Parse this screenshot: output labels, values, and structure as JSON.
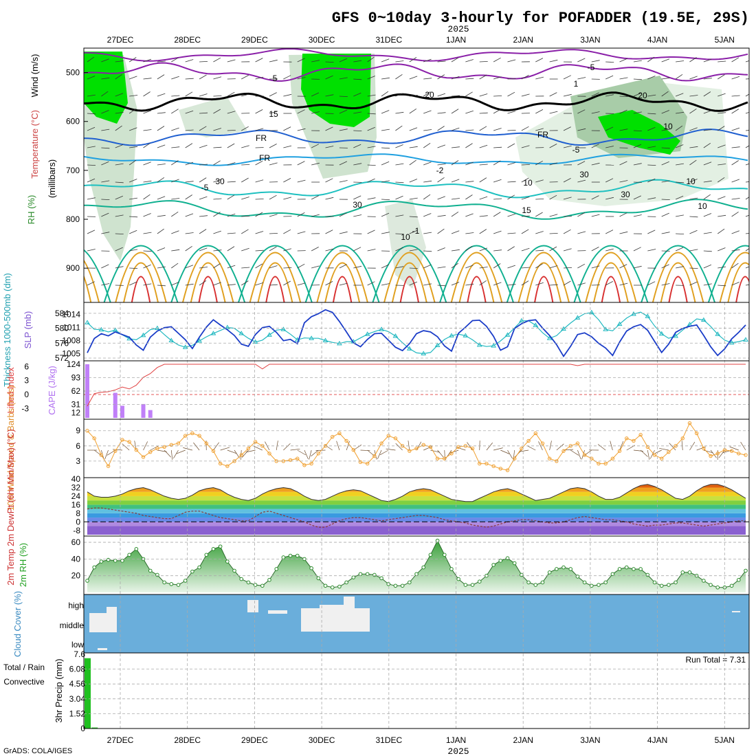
{
  "title": "GFS 0~10day 3-hourly for POFADDER (19.5E, 29S)",
  "year_label": "2025",
  "credit": "GrADS: COLA/IGES",
  "date_labels": [
    "27DEC",
    "28DEC",
    "29DEC",
    "30DEC",
    "31DEC",
    "1JAN",
    "2JAN",
    "3JAN",
    "4JAN",
    "5JAN"
  ],
  "colors": {
    "rh_green": "#00e000",
    "temp_purple": "#8a1fa8",
    "temp_blue": "#1f5fd0",
    "temp_lightblue": "#1fa0e0",
    "temp_cyan": "#1ec0c0",
    "temp_teal": "#10b090",
    "temp_orange": "#e0a020",
    "temp_red": "#d83030",
    "slp": "#1a3cc8",
    "thickness": "#20b8c0",
    "cape": "#c080f8",
    "lifted": "#e04040",
    "wind": "#f0a030",
    "rh2m": "#20a020",
    "cloud": "#6aaedb",
    "precip": "#20c020"
  },
  "upper_panel": {
    "y_axis_label_units": "(millibars)",
    "legend_wind": "Wind (m/s)",
    "legend_temp": "Temperature (°C)",
    "legend_rh": "RH (%)",
    "y_ticks": [
      "500",
      "600",
      "700",
      "800",
      "900"
    ],
    "contour_labels": [
      "5",
      "-5",
      "FR",
      "FR",
      "FR",
      "-5",
      "-5",
      "10",
      "10",
      "15",
      "15",
      "20",
      "20",
      "30",
      "30",
      "30",
      "30",
      "10",
      "10",
      "-1",
      "1",
      "10",
      "-2"
    ]
  },
  "chart_data": [
    {
      "type": "line",
      "title": "",
      "ylabel_left": "Thickness 1000-500mb (dm)",
      "ylabel_right": "SLP (mb)",
      "y_left_ticks": [
        "572",
        "576",
        "580",
        "584"
      ],
      "y_right_ticks": [
        "1005",
        "1008",
        "1011",
        "1014"
      ],
      "series": [
        {
          "name": "SLP (mb)",
          "axis": "right",
          "values": [
            1005.2,
            1008.5,
            1009.6,
            1009.1,
            1010.0,
            1009.4,
            1008.8,
            1007.0,
            1005.8,
            1008.8,
            1010.2,
            1011.0,
            1011.2,
            1009.7,
            1008.2,
            1006.2,
            1008.8,
            1011.1,
            1012.8,
            1011.6,
            1010.5,
            1009.2,
            1007.2,
            1006.7,
            1009.4,
            1011.0,
            1011.3,
            1009.9,
            1008.0,
            1008.3,
            1007.3,
            1012.1,
            1013.5,
            1014.2,
            1015.1,
            1014.5,
            1012.4,
            1010.0,
            1007.5,
            1006.6,
            1008.3,
            1009.6,
            1009.7,
            1008.1,
            1006.5,
            1005.7,
            1007.3,
            1009.6,
            1010.3,
            1010.0,
            1008.9,
            1006.8,
            1005.6,
            1009.7,
            1011.1,
            1012.6,
            1012.7,
            1011.3,
            1009.0,
            1005.8,
            1006.6,
            1010.8,
            1011.9,
            1012.6,
            1012.8,
            1010.9,
            1009.2,
            1007.1,
            1004.4,
            1006.7,
            1009.4,
            1009.8,
            1008.9,
            1007.4,
            1006.3,
            1004.6,
            1007.7,
            1010.2,
            1011.2,
            1011.7,
            1010.4,
            1007.8,
            1005.3,
            1007.2,
            1009.9,
            1010.8,
            1011.3,
            1011.6,
            1009.2,
            1006.6,
            1004.6,
            1006.1,
            1008.4,
            1009.9,
            1011.6
          ]
        },
        {
          "name": "Thickness 1000-500mb (dm)",
          "axis": "left",
          "values": [
            581.5,
            579.7,
            579.6,
            579.0,
            579.5,
            578.2,
            577.2,
            576.9,
            578.1,
            579.6,
            580.0,
            578.3,
            576.7,
            575.5,
            574.9,
            575.4,
            576.6,
            577.7,
            578.6,
            579.4,
            580.2,
            580.0,
            578.6,
            577.3,
            576.3,
            576.8,
            578.2,
            579.5,
            579.7,
            578.4,
            576.9,
            577.4,
            577.3,
            577.3,
            576.7,
            576.2,
            575.9,
            576.4,
            576.4,
            577.4,
            578.4,
            579.1,
            579.7,
            579.1,
            577.9,
            576.1,
            574.5,
            573.4,
            573.2,
            573.5,
            575.4,
            577.0,
            578.0,
            578.4,
            578.0,
            576.9,
            575.5,
            575.1,
            575.3,
            576.6,
            578.2,
            580.1,
            582.0,
            582.0,
            580.8,
            578.8,
            577.3,
            578.0,
            579.8,
            581.4,
            582.8,
            583.9,
            584.2,
            582.3,
            579.7,
            579.3,
            581.1,
            582.7,
            583.8,
            584.3,
            583.2,
            580.6,
            578.5,
            577.3,
            577.9,
            579.5,
            581.0,
            582.5,
            582.2,
            580.5,
            578.4,
            576.8,
            576.1,
            576.4,
            576.9
          ]
        }
      ]
    },
    {
      "type": "bar",
      "title": "",
      "ylabel_left": "Lifted Index",
      "ylabel_right": "CAPE (J/kg)",
      "y_left_ticks": [
        "-3",
        "0",
        "3",
        "6"
      ],
      "y_right_ticks": [
        "12",
        "31",
        "62",
        "93",
        "124"
      ],
      "series": [
        {
          "name": "CAPE (J/kg)",
          "type": "bar",
          "values": [
            124,
            0,
            0,
            0,
            58,
            28,
            0,
            0,
            32,
            18,
            0,
            0,
            0,
            0,
            0,
            0,
            0,
            0,
            0,
            0,
            0,
            0,
            0,
            0,
            0,
            0,
            0,
            0,
            0,
            0,
            0,
            0,
            0,
            0,
            0,
            0,
            0,
            0,
            0,
            0,
            0,
            0,
            0,
            0,
            0,
            0,
            0,
            0,
            0,
            0,
            0,
            0,
            0,
            0,
            0,
            0,
            0,
            0,
            0,
            0,
            0,
            0,
            0,
            0,
            0,
            0,
            0,
            0,
            0,
            0,
            0,
            0,
            0,
            0,
            0,
            0,
            0,
            0,
            0,
            0,
            0,
            0,
            0,
            0,
            0,
            0,
            0,
            0,
            0,
            0,
            0,
            0,
            0,
            0,
            0
          ]
        },
        {
          "name": "Lifted Index",
          "type": "line",
          "values": [
            -2.5,
            0.2,
            0.5,
            0.6,
            1.0,
            1.6,
            1.2,
            2.0,
            3.7,
            4.5,
            5.8,
            6.5,
            6.5,
            6.5,
            6.5,
            6.5,
            6.5,
            6.5,
            6.5,
            6.5,
            6.5,
            6.5,
            6.5,
            6.5,
            6.5,
            5.5,
            6.5,
            6.5,
            6.5,
            6.5,
            6.5,
            6.5,
            6.5,
            6.5,
            6.5,
            6.5,
            6.5,
            6.5,
            6.5,
            6.5,
            6.5,
            6.5,
            6.5,
            6.5,
            6.5,
            6.5,
            6.5,
            6.5,
            6.5,
            6.5,
            6.5,
            6.5,
            6.5,
            6.5,
            6.5,
            6.5,
            6.5,
            6.5,
            6.5,
            6.5,
            6.5,
            6.5,
            6.5,
            6.5,
            6.5,
            6.5,
            6.5,
            6.5,
            6.5,
            6.5,
            6.2,
            6.5,
            6.5,
            6.5,
            6.5,
            6.5,
            6.5,
            6.5,
            6.5,
            6.5,
            6.5,
            6.5,
            6.5,
            6.5,
            6.5,
            6.5,
            6.5,
            6.5,
            6.5,
            6.5,
            6.5,
            6.5,
            6.5,
            6.5,
            6.5
          ]
        }
      ]
    },
    {
      "type": "line",
      "title": "",
      "ylabel": "10m Wind Speed & Barbs (m/s)",
      "y_ticks": [
        "3",
        "6",
        "9"
      ],
      "series": [
        {
          "name": "10m Wind Speed (m/s)",
          "values": [
            9.0,
            7.5,
            4.2,
            2.0,
            5.0,
            7.2,
            6.8,
            5.2,
            3.8,
            4.8,
            5.5,
            5.8,
            6.2,
            6.5,
            8.0,
            8.5,
            8.0,
            6.5,
            5.0,
            2.5,
            2.0,
            3.0,
            4.2,
            5.5,
            6.8,
            6.0,
            4.5,
            3.0,
            3.0,
            3.2,
            3.5,
            2.2,
            2.5,
            4.5,
            6.0,
            7.8,
            8.5,
            7.0,
            5.2,
            2.8,
            2.5,
            4.0,
            6.5,
            8.0,
            7.5,
            6.0,
            5.0,
            5.5,
            6.2,
            5.8,
            3.5,
            3.5,
            4.5,
            5.8,
            6.0,
            5.5,
            2.5,
            2.5,
            2.0,
            1.5,
            1.2,
            3.5,
            5.5,
            7.0,
            8.5,
            6.5,
            3.5,
            3.0,
            5.0,
            6.0,
            6.5,
            4.2,
            3.5,
            2.5,
            2.5,
            3.5,
            5.0,
            7.5,
            7.0,
            8.2,
            5.8,
            4.2,
            3.5,
            4.8,
            6.0,
            7.5,
            10.5,
            8.5,
            5.5,
            4.0,
            4.5,
            5.2,
            5.0,
            4.5,
            4.2
          ]
        }
      ]
    },
    {
      "type": "area",
      "title": "",
      "ylabel": "2m Temp 2m DewPt (6hr Min/Max) (°C)",
      "y_ticks": [
        "-8",
        "0",
        "8",
        "16",
        "24",
        "32",
        "40"
      ],
      "series": [
        {
          "name": "2m Temp (°C)",
          "values": [
            28,
            24,
            23,
            23,
            24,
            26,
            29,
            31,
            32,
            30,
            27,
            24,
            22,
            21,
            22,
            25,
            29,
            31,
            32,
            30,
            26,
            23,
            21,
            20,
            22,
            26,
            29,
            31,
            32,
            31,
            28,
            24,
            21,
            20,
            21,
            24,
            27,
            29,
            30,
            29,
            26,
            23,
            20,
            19,
            21,
            24,
            28,
            30,
            31,
            30,
            27,
            24,
            21,
            20,
            19,
            19,
            22,
            25,
            28,
            30,
            31,
            29,
            26,
            23,
            20,
            21,
            22,
            25,
            28,
            31,
            32,
            31,
            28,
            24,
            21,
            21,
            23,
            27,
            31,
            34,
            35,
            33,
            30,
            26,
            22,
            21,
            24,
            29,
            33,
            35,
            35,
            33,
            30,
            26,
            22
          ]
        },
        {
          "name": "2m DewPt (°C)",
          "values": [
            12,
            13,
            13,
            12,
            11,
            10,
            9,
            8,
            6,
            5,
            4,
            3,
            3,
            6,
            9,
            10,
            10,
            8,
            6,
            4,
            3,
            2,
            1,
            1,
            5,
            9,
            10,
            8,
            6,
            4,
            2,
            0,
            -3,
            -5,
            -5,
            -2,
            1,
            3,
            4,
            4,
            3,
            2,
            1,
            2,
            3,
            4,
            5,
            6,
            6,
            5,
            4,
            2,
            1,
            0,
            -1,
            -3,
            -4,
            -5,
            -4,
            -2,
            0,
            1,
            2,
            2,
            1,
            0,
            -1,
            -1,
            0,
            2,
            4,
            5,
            4,
            3,
            2,
            2,
            1,
            0,
            -2,
            -3,
            -4,
            -3,
            -3,
            -2,
            -1,
            -1,
            -2,
            -3,
            -4,
            -3,
            -2,
            -1,
            0,
            1,
            1
          ]
        }
      ]
    },
    {
      "type": "area",
      "title": "",
      "ylabel": "2m RH (%)",
      "y_ticks": [
        "20",
        "40",
        "60"
      ],
      "series": [
        {
          "name": "2m RH (%)",
          "values": [
            14,
            30,
            37,
            39,
            38,
            38,
            45,
            52,
            40,
            26,
            21,
            12,
            10,
            9,
            14,
            25,
            30,
            45,
            52,
            55,
            37,
            26,
            16,
            12,
            9,
            8,
            15,
            28,
            42,
            44,
            44,
            40,
            29,
            17,
            8,
            6,
            7,
            12,
            18,
            22,
            22,
            21,
            17,
            10,
            8,
            8,
            12,
            22,
            30,
            45,
            62,
            45,
            28,
            16,
            9,
            9,
            13,
            20,
            33,
            38,
            41,
            35,
            21,
            12,
            9,
            12,
            24,
            28,
            30,
            28,
            19,
            12,
            8,
            9,
            12,
            22,
            28,
            30,
            28,
            28,
            21,
            12,
            8,
            9,
            12,
            24,
            24,
            20,
            14,
            9,
            6,
            6,
            8,
            15,
            26,
            30,
            32,
            24
          ]
        }
      ]
    },
    {
      "type": "heatmap",
      "title": "",
      "ylabel": "Cloud Cover (%)",
      "y_ticks": [
        "high",
        "middle",
        "low"
      ]
    },
    {
      "type": "bar",
      "title": "",
      "ylabel": "3hr Precip (mm)",
      "legend_left_1": "Total / Rain",
      "legend_left_2": "Convective",
      "annotation": "Run Total = 7.31",
      "y_ticks": [
        "0",
        "1.52",
        "3.04",
        "4.56",
        "6.08",
        "7.6"
      ],
      "ylim": [
        0,
        7.6
      ],
      "series": [
        {
          "name": "Total / Rain",
          "values": [
            7.2,
            0.1,
            0,
            0,
            0,
            0,
            0,
            0,
            0,
            0,
            0,
            0,
            0,
            0,
            0,
            0,
            0,
            0,
            0,
            0,
            0,
            0,
            0,
            0,
            0,
            0,
            0,
            0,
            0,
            0,
            0,
            0,
            0,
            0,
            0,
            0,
            0,
            0,
            0,
            0,
            0,
            0,
            0,
            0,
            0,
            0,
            0,
            0,
            0,
            0,
            0,
            0,
            0,
            0,
            0,
            0,
            0,
            0,
            0,
            0,
            0,
            0,
            0,
            0,
            0,
            0,
            0,
            0,
            0,
            0,
            0,
            0,
            0,
            0,
            0,
            0,
            0,
            0,
            0,
            0,
            0,
            0,
            0,
            0,
            0,
            0,
            0,
            0,
            0,
            0,
            0,
            0,
            0,
            0,
            0,
            0,
            0,
            0,
            0
          ]
        }
      ]
    }
  ]
}
